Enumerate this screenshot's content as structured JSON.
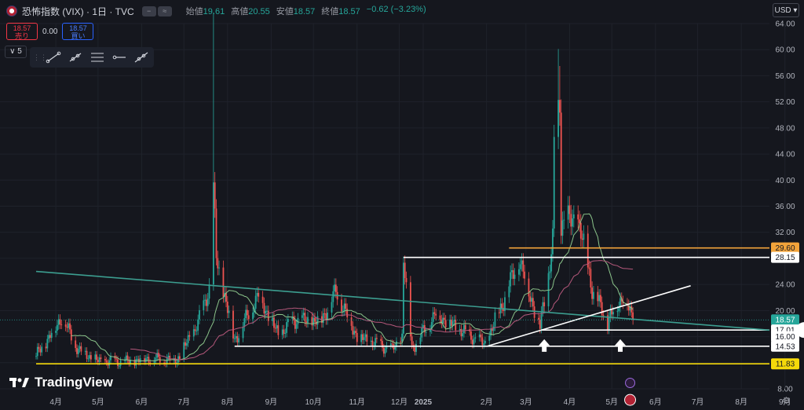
{
  "header": {
    "symbol_title": "恐怖指数 (VIX) · 1日 · TVC",
    "ohlc": [
      {
        "label": "始値",
        "value": "19.61"
      },
      {
        "label": "高値",
        "value": "20.55"
      },
      {
        "label": "安値",
        "value": "18.57"
      },
      {
        "label": "終値",
        "value": "18.57"
      }
    ],
    "change": "−0.62 (−3.23%)",
    "currency": "USD"
  },
  "trade": {
    "sell_price": "18.57",
    "sell_label": "売り",
    "spread": "0.00",
    "buy_price": "18.57",
    "buy_label": "買い"
  },
  "layers_count": "5",
  "logo_text": "TradingView",
  "colors": {
    "background": "#15171e",
    "up": "#26a69a",
    "down": "#ef5350",
    "trendline_teal": "#3c9e90",
    "support_white": "#ffffff",
    "resistance_orange": "#f2a33a",
    "floor_yellow": "#f5d90a",
    "ma_short": "#8bc48a",
    "ma_long": "#b5587b"
  },
  "chart_data": {
    "type": "candlestick",
    "symbol": "VIX",
    "y_scale": {
      "min": 8,
      "max": 64,
      "grid": true
    },
    "y_ticks": [
      "64.00",
      "60.00",
      "56.00",
      "52.00",
      "48.00",
      "44.00",
      "40.00",
      "36.00",
      "32.00",
      "28.00",
      "24.00",
      "20.00",
      "16.00",
      "12.00",
      "8.00"
    ],
    "x_ticks": [
      "4月",
      "5月",
      "6月",
      "7月",
      "8月",
      "9月",
      "10月",
      "11月",
      "12月",
      "2025",
      "2月",
      "3月",
      "4月",
      "5月",
      "6月",
      "7月",
      "8月",
      "9月"
    ],
    "bold_x_tick": "2025",
    "period_start": "2024-04-01",
    "period_end": "2025-05-30",
    "last_close": 18.57,
    "price_labels": [
      {
        "value": "29.60",
        "color": "#f2a33a"
      },
      {
        "value": "28.15",
        "color": "#ffffff"
      },
      {
        "value": "18.57",
        "color": "#26a69a"
      },
      {
        "value": "17.01",
        "color": "#ffffff"
      },
      {
        "value": "16.00",
        "color": "#ffffff"
      },
      {
        "value": "14.53",
        "color": "#ffffff"
      },
      {
        "value": "11.83",
        "color": "#f5d90a"
      }
    ],
    "horizontal_levels": [
      {
        "value": 29.6,
        "color": "#f2a33a",
        "from": "2025-03-03"
      },
      {
        "value": 28.15,
        "color": "#ffffff",
        "from": "2024-12-18"
      },
      {
        "value": 17.01,
        "color": "#ffffff",
        "from": "2025-03-26"
      },
      {
        "value": 14.53,
        "color": "#ffffff",
        "from": "2024-08-20"
      },
      {
        "value": 11.83,
        "color": "#f5d90a",
        "from": "2024-04-01"
      }
    ],
    "trend_lines": [
      {
        "color": "#3c9e90",
        "from": {
          "date": "2024-04-01",
          "value": 26.0
        },
        "to": {
          "date": "2025-09-10",
          "value": 17.0
        }
      },
      {
        "color": "#ffffff",
        "from": {
          "date": "2025-02-15",
          "value": 14.5
        },
        "to": {
          "date": "2025-07-10",
          "value": 23.8
        }
      }
    ],
    "arrows": [
      {
        "date": "2025-03-28",
        "value": 15.6
      },
      {
        "date": "2025-05-21",
        "value": 15.6
      }
    ],
    "key_points": [
      {
        "date": "2024-08-05",
        "value": 65.7
      },
      {
        "date": "2024-12-18",
        "value": 28.3
      },
      {
        "date": "2025-04-08",
        "value": 60.1
      },
      {
        "date": "2025-05-30",
        "value": 18.57
      }
    ]
  }
}
